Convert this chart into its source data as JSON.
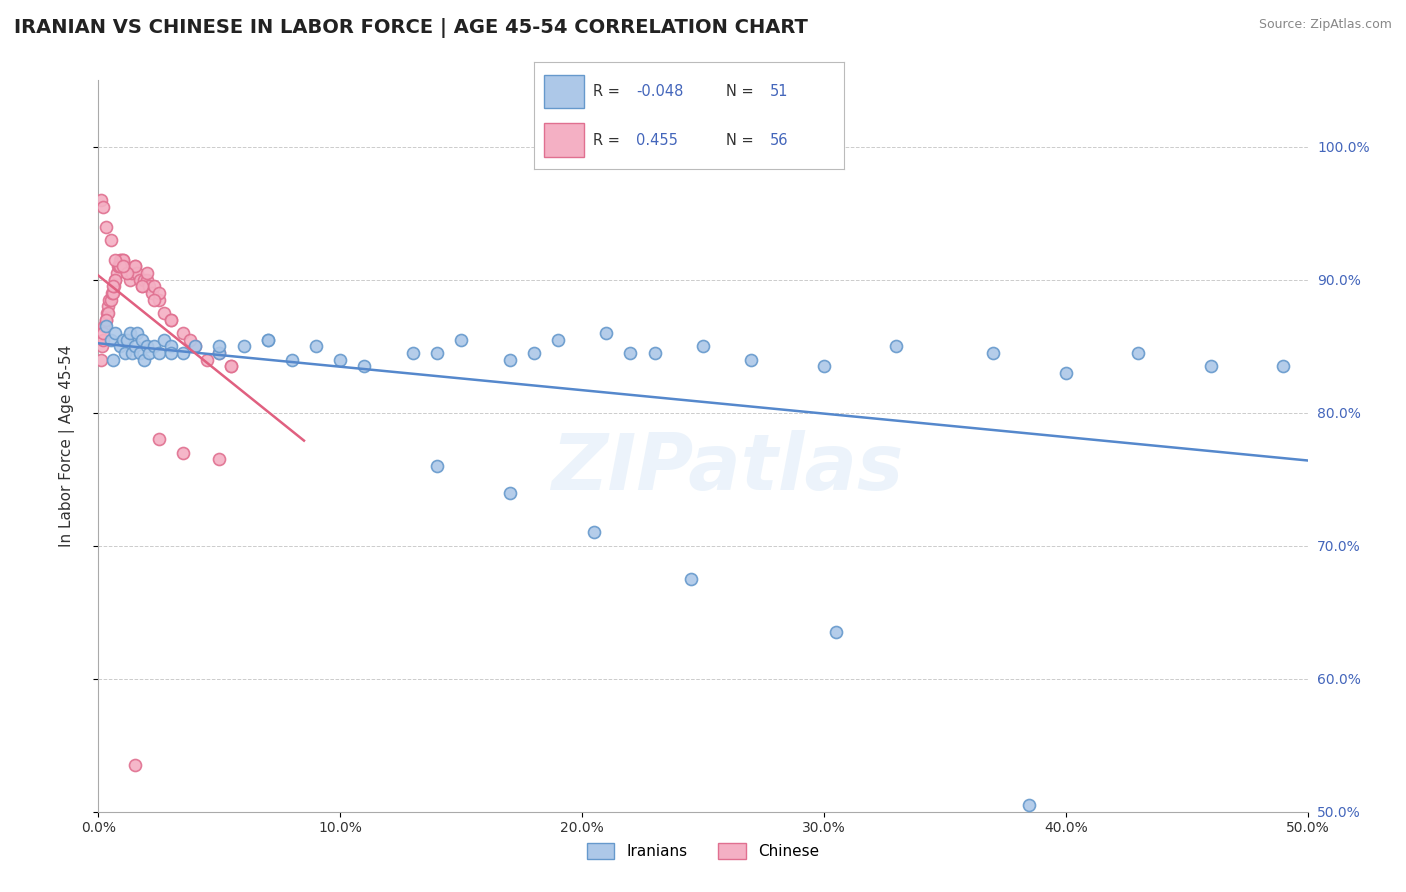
{
  "title": "IRANIAN VS CHINESE IN LABOR FORCE | AGE 45-54 CORRELATION CHART",
  "source_text": "Source: ZipAtlas.com",
  "xlabel": "",
  "ylabel": "In Labor Force | Age 45-54",
  "xlim": [
    0.0,
    50.0
  ],
  "ylim": [
    50.0,
    105.0
  ],
  "x_ticks": [
    0.0,
    10.0,
    20.0,
    30.0,
    40.0,
    50.0
  ],
  "x_tick_labels": [
    "0.0%",
    "10.0%",
    "20.0%",
    "30.0%",
    "40.0%",
    "50.0%"
  ],
  "y_ticks": [
    50.0,
    60.0,
    70.0,
    80.0,
    90.0,
    100.0
  ],
  "y_tick_labels": [
    "50.0%",
    "60.0%",
    "70.0%",
    "80.0%",
    "90.0%",
    "100.0%"
  ],
  "iranians_color": "#adc8e8",
  "iranians_edge_color": "#6699cc",
  "chinese_color": "#f4b0c4",
  "chinese_edge_color": "#e07090",
  "trend_iranian_color": "#5588cc",
  "trend_chinese_color": "#e06080",
  "legend_R_iranian": "-0.048",
  "legend_N_iranian": "51",
  "legend_R_chinese": "0.455",
  "legend_N_chinese": "56",
  "legend_color": "#4466bb",
  "background_color": "#ffffff",
  "grid_color": "#cccccc",
  "watermark_text": "ZIPatlas",
  "iranians_x": [
    0.3,
    0.5,
    0.6,
    0.7,
    0.9,
    1.0,
    1.1,
    1.2,
    1.3,
    1.4,
    1.5,
    1.6,
    1.7,
    1.8,
    1.9,
    2.0,
    2.1,
    2.3,
    2.5,
    2.7,
    3.0,
    3.5,
    4.0,
    5.0,
    6.0,
    7.0,
    8.0,
    9.0,
    11.0,
    13.0,
    15.0,
    17.0,
    19.0,
    21.0,
    23.0,
    25.0,
    27.0,
    30.0,
    33.0,
    37.0,
    40.0,
    43.0,
    46.0,
    49.0,
    3.0,
    5.0,
    7.0,
    10.0,
    14.0,
    18.0,
    22.0
  ],
  "iranians_y": [
    86.5,
    85.5,
    84.0,
    86.0,
    85.0,
    85.5,
    84.5,
    85.5,
    86.0,
    84.5,
    85.0,
    86.0,
    84.5,
    85.5,
    84.0,
    85.0,
    84.5,
    85.0,
    84.5,
    85.5,
    85.0,
    84.5,
    85.0,
    84.5,
    85.0,
    85.5,
    84.0,
    85.0,
    83.5,
    84.5,
    85.5,
    84.0,
    85.5,
    86.0,
    84.5,
    85.0,
    84.0,
    83.5,
    85.0,
    84.5,
    83.0,
    84.5,
    83.5,
    83.5,
    84.5,
    85.0,
    85.5,
    84.0,
    84.5,
    84.5,
    84.5
  ],
  "iranians_y_outliers": [
    76.0,
    74.0,
    71.0,
    67.5,
    63.5,
    50.5
  ],
  "iranians_x_outliers": [
    14.0,
    17.0,
    20.5,
    24.5,
    30.5,
    38.5
  ],
  "chinese_x": [
    0.1,
    0.15,
    0.2,
    0.25,
    0.3,
    0.35,
    0.4,
    0.45,
    0.5,
    0.55,
    0.6,
    0.65,
    0.7,
    0.75,
    0.8,
    0.85,
    0.9,
    0.95,
    1.0,
    1.1,
    1.2,
    1.3,
    1.4,
    1.5,
    1.6,
    1.7,
    1.8,
    1.9,
    2.0,
    2.1,
    2.2,
    2.3,
    2.5,
    2.7,
    3.0,
    3.5,
    4.0,
    4.5,
    5.0,
    5.5,
    0.2,
    0.4,
    0.7,
    1.0,
    1.5,
    2.0,
    2.5,
    0.3,
    0.6,
    0.9,
    1.2,
    1.8,
    2.3,
    3.0,
    3.8,
    5.5
  ],
  "chinese_y": [
    84.0,
    85.0,
    85.5,
    86.5,
    87.0,
    87.5,
    88.0,
    88.5,
    88.5,
    89.0,
    89.0,
    89.5,
    90.0,
    90.5,
    91.0,
    91.0,
    91.5,
    91.5,
    91.5,
    91.0,
    90.5,
    90.0,
    90.5,
    91.0,
    90.5,
    90.0,
    89.5,
    90.0,
    90.0,
    89.5,
    89.0,
    89.5,
    88.5,
    87.5,
    87.0,
    86.0,
    85.0,
    84.0,
    84.5,
    83.5,
    86.0,
    87.5,
    90.0,
    91.5,
    91.0,
    90.5,
    89.0,
    87.0,
    89.5,
    91.0,
    90.5,
    89.5,
    88.5,
    87.0,
    85.5,
    83.5
  ],
  "chinese_y_special": [
    96.0,
    95.5,
    94.0,
    93.0,
    91.5,
    91.0,
    78.0,
    77.0,
    76.5,
    53.5
  ],
  "chinese_x_special": [
    0.1,
    0.2,
    0.3,
    0.5,
    0.7,
    1.0,
    2.5,
    3.5,
    5.0,
    1.5
  ],
  "marker_size": 75,
  "title_fontsize": 14,
  "axis_label_fontsize": 11,
  "tick_fontsize": 10,
  "legend_fontsize": 11
}
